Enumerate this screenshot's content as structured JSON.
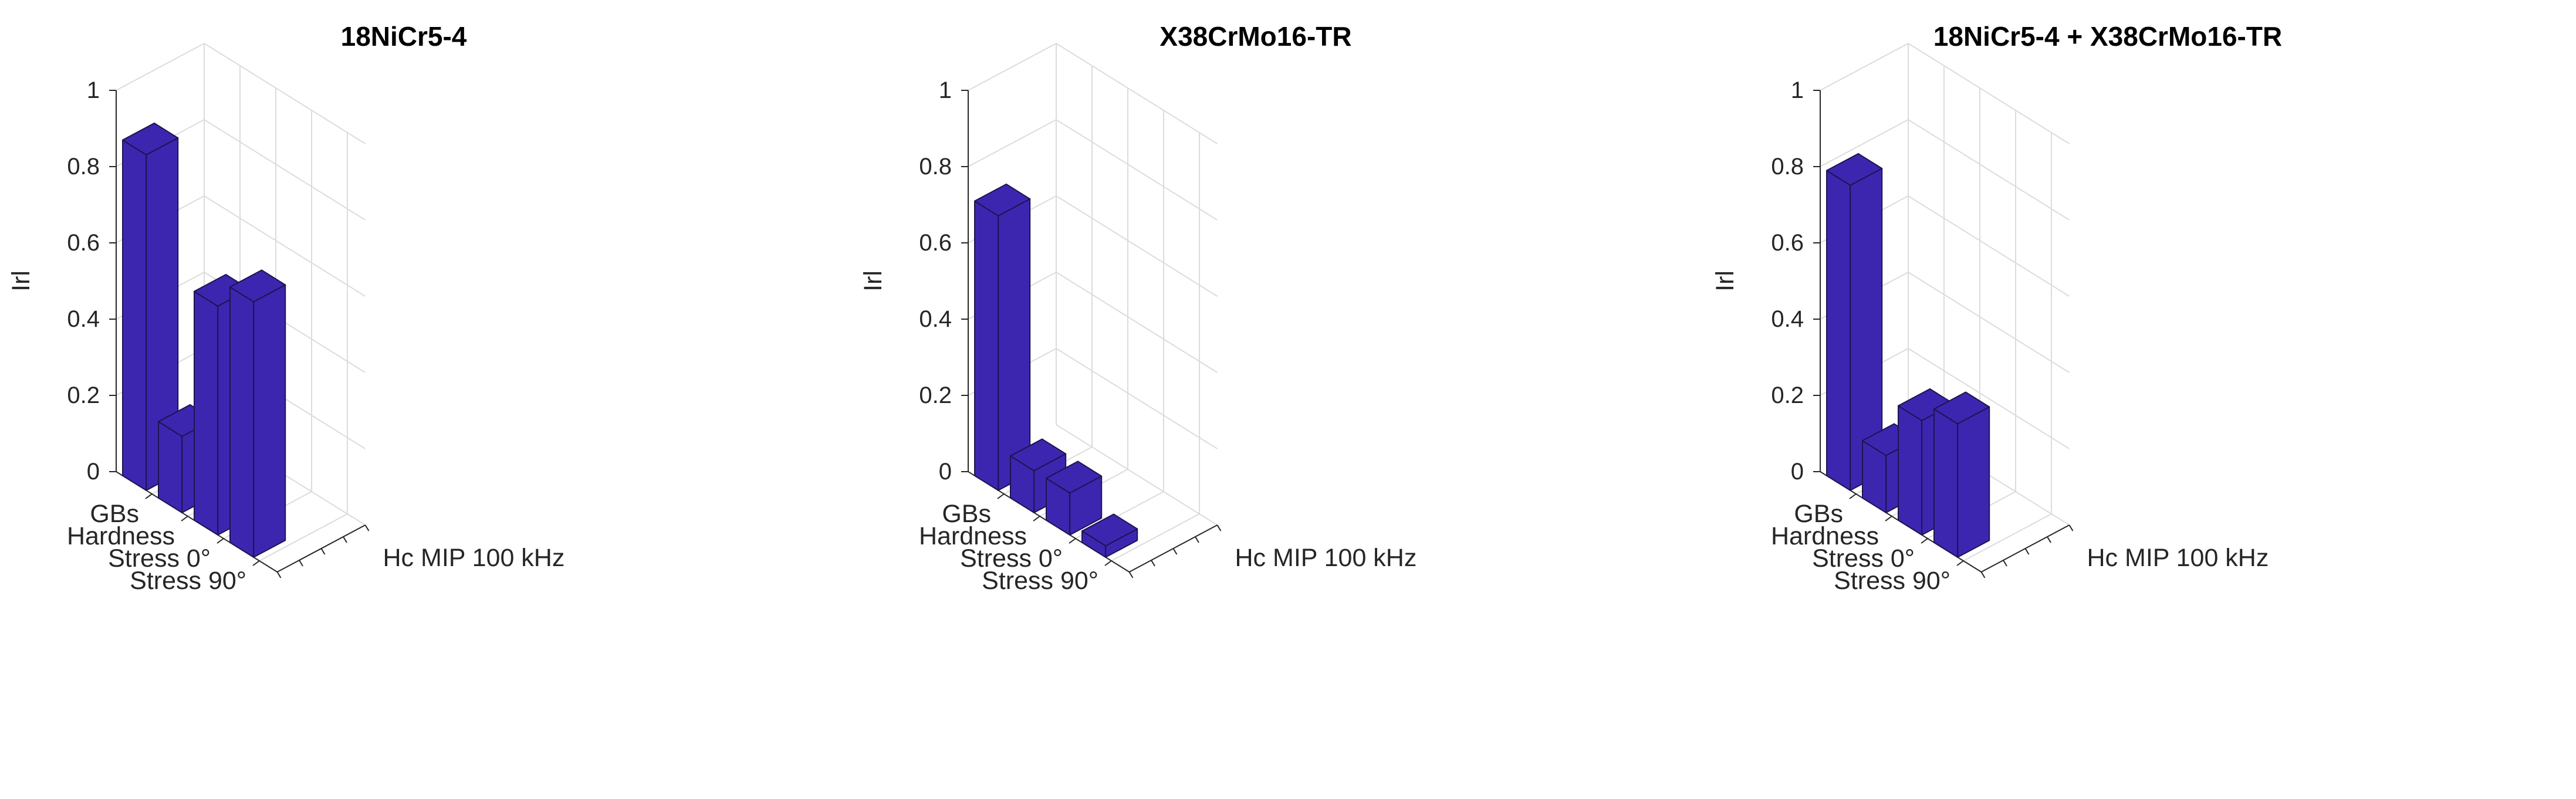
{
  "colors": {
    "bar_face": "#3c26b0",
    "bar_edge": "#1e1450",
    "grid": "#dcdcdc",
    "axis": "#262626"
  },
  "chart_data": [
    {
      "type": "bar3d",
      "title": "18NiCr5-4",
      "zlabel": "Irl",
      "xlabel": "Hc MIP 100 kHz",
      "categories": [
        "GBs",
        "Hardness",
        "Stress 0°",
        "Stress 90°"
      ],
      "values": [
        0.88,
        0.2,
        0.6,
        0.67
      ],
      "zlim": [
        0,
        1
      ],
      "zticks": [
        "0",
        "0.2",
        "0.4",
        "0.6",
        "0.8",
        "1"
      ],
      "grid": true
    },
    {
      "type": "bar3d",
      "title": "X38CrMo16-TR",
      "zlabel": "Irl",
      "xlabel": "Hc MIP 100 kHz",
      "categories": [
        "GBs",
        "Hardness",
        "Stress 0°",
        "Stress 90°"
      ],
      "values": [
        0.72,
        0.11,
        0.11,
        0.03
      ],
      "zlim": [
        0,
        1
      ],
      "zticks": [
        "0",
        "0.2",
        "0.4",
        "0.6",
        "0.8",
        "1"
      ],
      "grid": true
    },
    {
      "type": "bar3d",
      "title": "18NiCr5-4 + X38CrMo16-TR",
      "zlabel": "Irl",
      "xlabel": "Hc MIP 100 kHz",
      "categories": [
        "GBs",
        "Hardness",
        "Stress 0°",
        "Stress 90°"
      ],
      "values": [
        0.8,
        0.15,
        0.3,
        0.35
      ],
      "zlim": [
        0,
        1
      ],
      "zticks": [
        "0",
        "0.2",
        "0.4",
        "0.6",
        "0.8",
        "1"
      ],
      "grid": true
    }
  ]
}
